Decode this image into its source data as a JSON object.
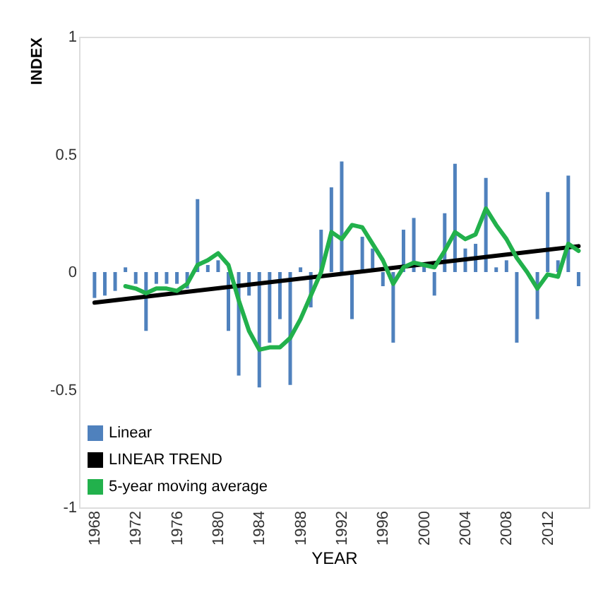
{
  "chart_data": {
    "type": "bar",
    "xlabel": "YEAR",
    "ylabel": "INDEX",
    "x": [
      1968,
      1969,
      1970,
      1971,
      1972,
      1973,
      1974,
      1975,
      1976,
      1977,
      1978,
      1979,
      1980,
      1981,
      1982,
      1983,
      1984,
      1985,
      1986,
      1987,
      1988,
      1989,
      1990,
      1991,
      1992,
      1993,
      1994,
      1995,
      1996,
      1997,
      1998,
      1999,
      2000,
      2001,
      2002,
      2003,
      2004,
      2005,
      2006,
      2007,
      2008,
      2009,
      2010,
      2011,
      2012,
      2013,
      2014,
      2015
    ],
    "xlim": [
      1966.5,
      2016
    ],
    "xticks": [
      1968,
      1972,
      1976,
      1980,
      1984,
      1988,
      1992,
      1996,
      2000,
      2004,
      2008,
      2012
    ],
    "ylim": [
      -1,
      1
    ],
    "yticks": [
      -1,
      -0.5,
      0,
      0.5,
      1
    ],
    "grid": false,
    "legend": "bottom",
    "series": [
      {
        "name": "Linear",
        "type": "bar",
        "color": "#4f81bd",
        "values": [
          -0.11,
          -0.1,
          -0.08,
          0.02,
          -0.05,
          -0.25,
          -0.05,
          -0.05,
          -0.05,
          -0.07,
          0.31,
          0.03,
          0.05,
          -0.25,
          -0.44,
          -0.1,
          -0.49,
          -0.3,
          -0.2,
          -0.48,
          0.02,
          -0.15,
          0.18,
          0.36,
          0.47,
          -0.2,
          0.15,
          0.1,
          -0.06,
          -0.3,
          0.18,
          0.23,
          0.03,
          -0.1,
          0.25,
          0.46,
          0.1,
          0.12,
          0.4,
          0.02,
          0.05,
          -0.3,
          null,
          -0.2,
          0.34,
          0.05,
          0.41,
          -0.06
        ]
      },
      {
        "name": "LINEAR TREND",
        "type": "line",
        "color": "#000000",
        "x": [
          1968,
          2015
        ],
        "values": [
          -0.13,
          0.11
        ]
      },
      {
        "name": "5-year moving average",
        "type": "line",
        "color": "#22b14c",
        "values": [
          null,
          null,
          null,
          -0.06,
          -0.07,
          -0.09,
          -0.07,
          -0.07,
          -0.08,
          -0.05,
          0.03,
          0.05,
          0.08,
          0.03,
          -0.12,
          -0.25,
          -0.33,
          -0.32,
          -0.32,
          -0.28,
          -0.2,
          -0.1,
          0.0,
          0.17,
          0.14,
          0.2,
          0.19,
          0.12,
          0.05,
          -0.05,
          0.02,
          0.04,
          0.03,
          0.02,
          0.09,
          0.17,
          0.14,
          0.16,
          0.27,
          0.2,
          0.14,
          0.06,
          0.0,
          -0.07,
          -0.01,
          -0.02,
          0.12,
          0.09
        ]
      }
    ]
  }
}
